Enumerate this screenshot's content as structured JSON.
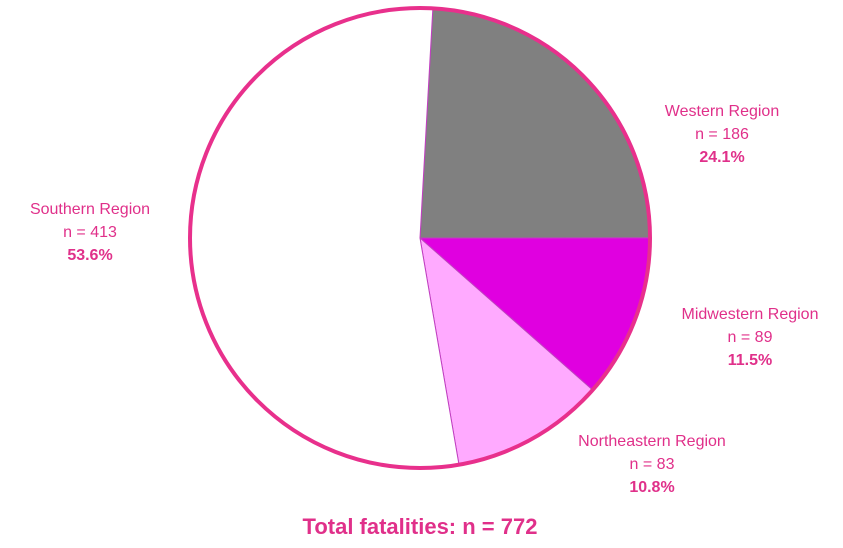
{
  "chart_data": {
    "type": "pie",
    "title": "Total fatalities:  n = 772",
    "categories": [
      "Western Region",
      "Midwestern Region",
      "Northeastern Region",
      "Southern Region"
    ],
    "count_labels": [
      "n = 186",
      "n = 89",
      "n = 83",
      "n = 413"
    ],
    "values": [
      24.1,
      11.5,
      10.8,
      53.6
    ],
    "value_labels": [
      "24.1%",
      "11.5%",
      "10.8%",
      "53.6%"
    ],
    "colors": [
      "#808080",
      "#e000e0",
      "#ffaaff",
      "#ffffff"
    ],
    "border_color": "#e8308c",
    "text_color": "#e0308a"
  }
}
